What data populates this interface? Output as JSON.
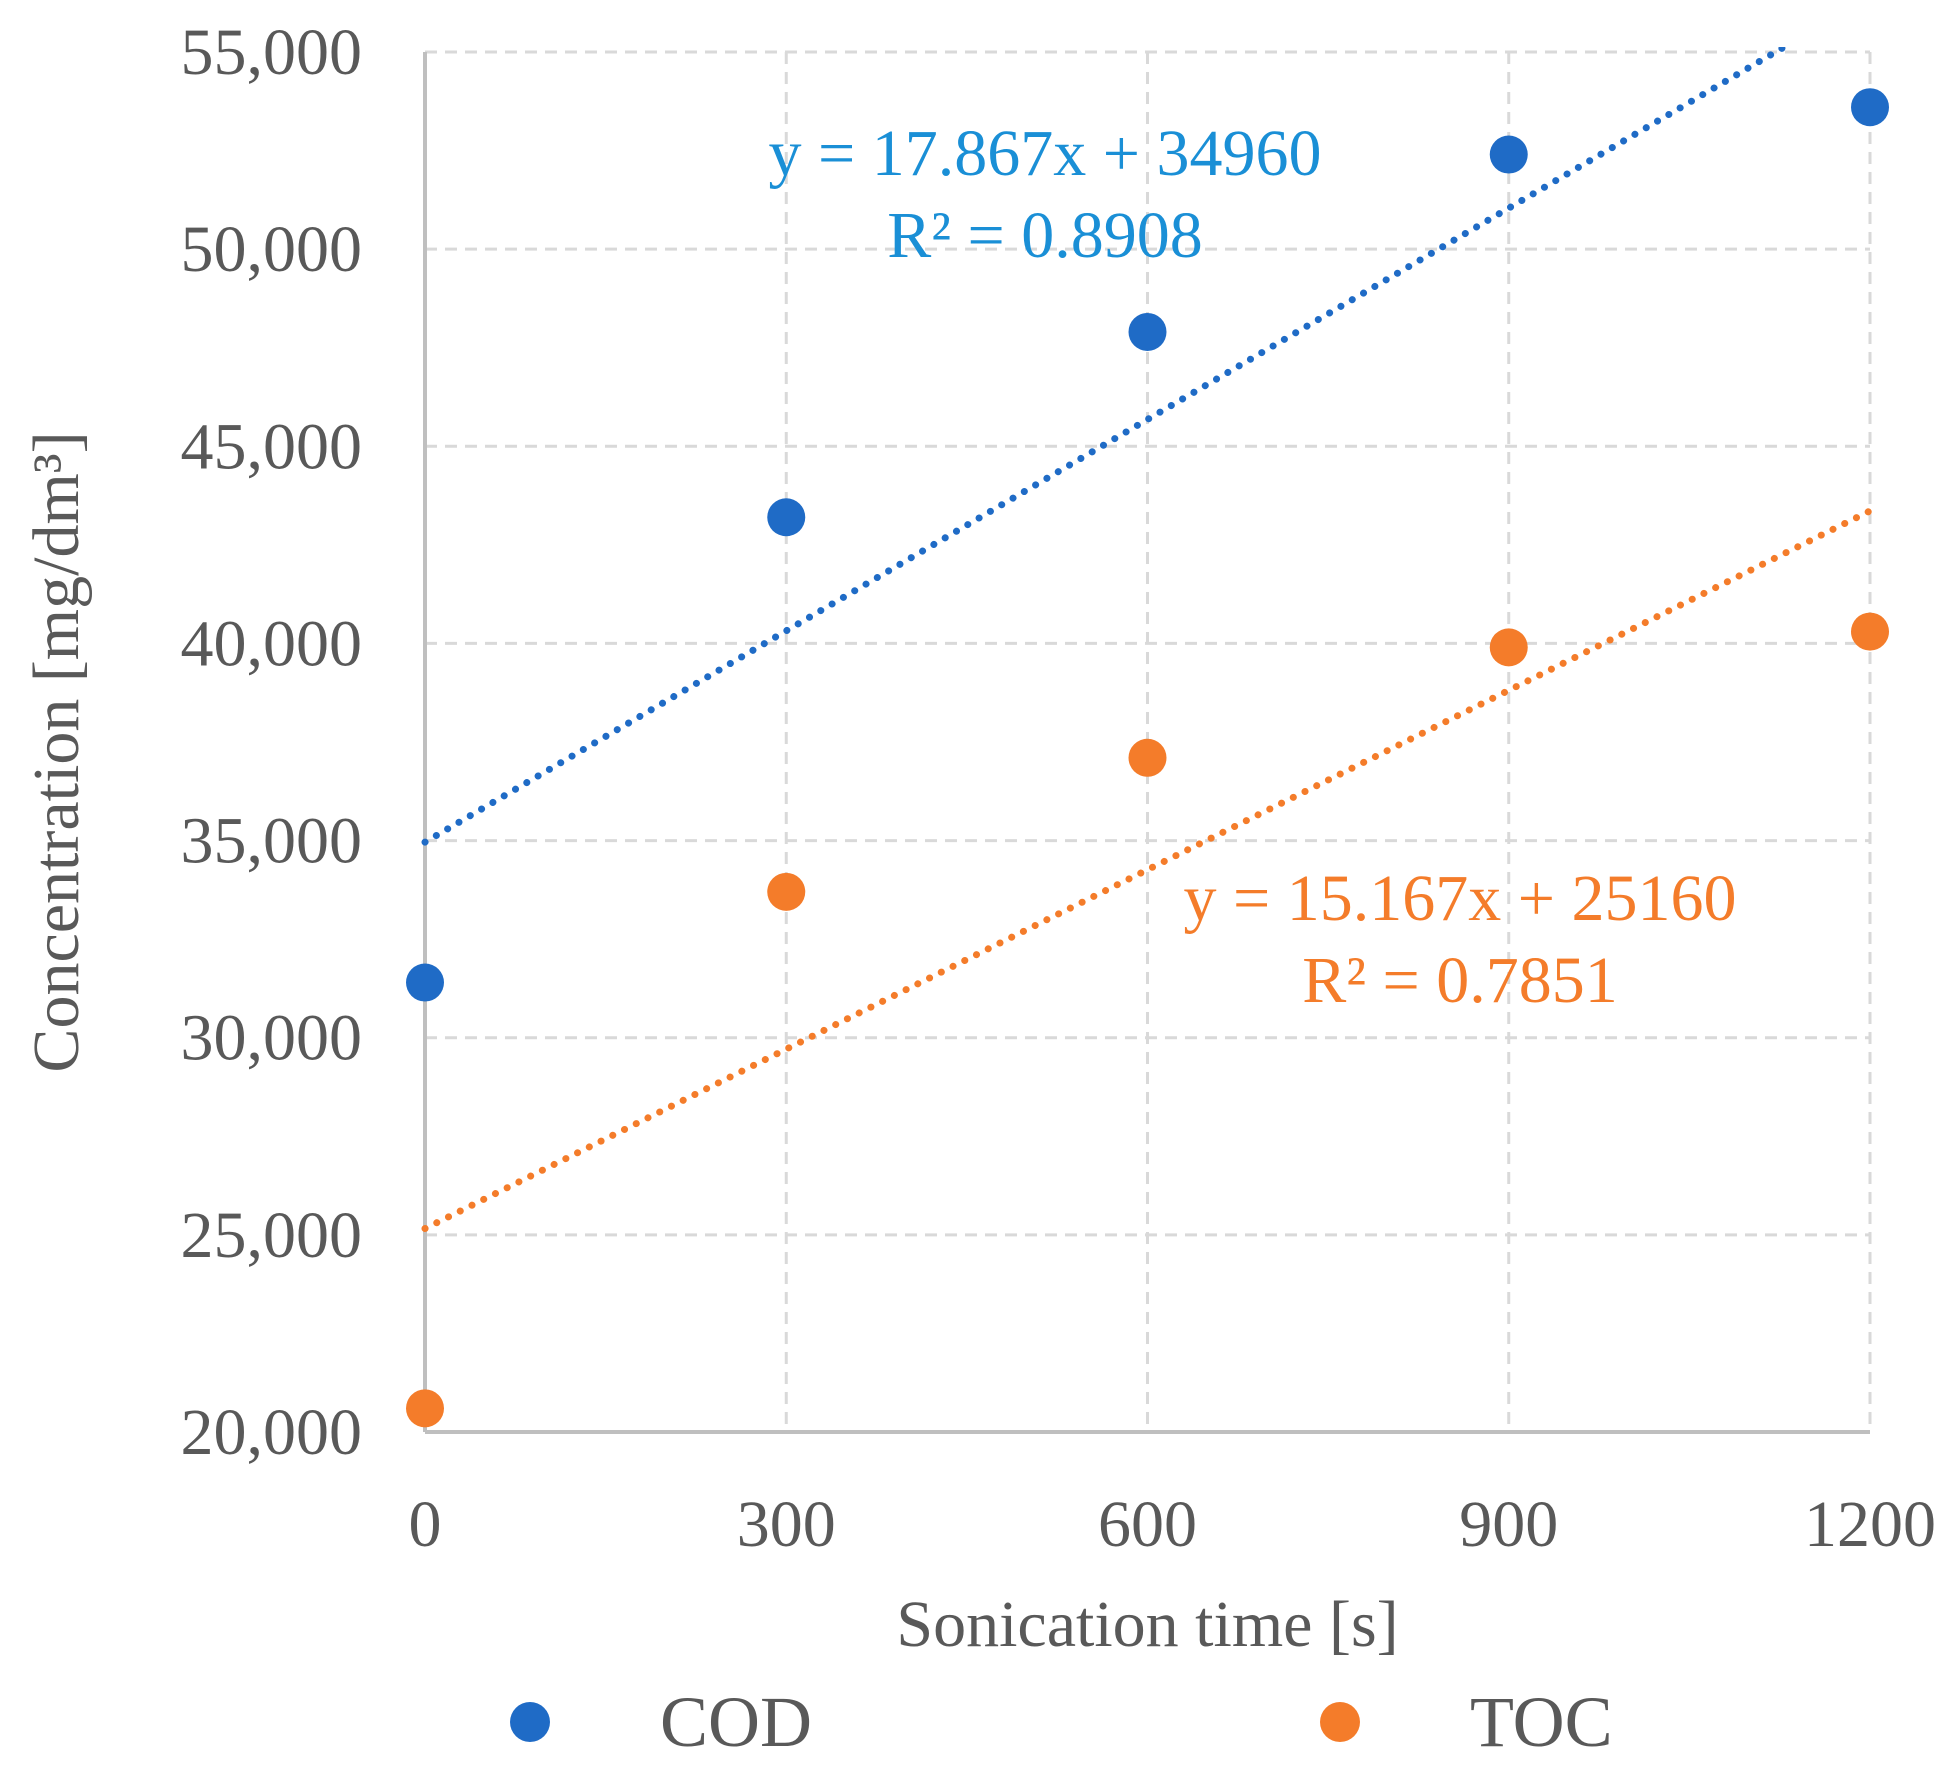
{
  "chart_data": {
    "type": "scatter",
    "title": "",
    "xlabel": "Sonication time [s]",
    "ylabel": "Concentration [mg/dm³]",
    "xlim": [
      0,
      1200
    ],
    "ylim": [
      20000,
      55000
    ],
    "x_ticks": [
      0,
      300,
      600,
      900,
      1200
    ],
    "x_tick_labels": [
      "0",
      "300",
      "600",
      "900",
      "1200"
    ],
    "y_ticks": [
      20000,
      25000,
      30000,
      35000,
      40000,
      45000,
      50000,
      55000
    ],
    "y_tick_labels": [
      "20,000",
      "25,000",
      "30,000",
      "35,000",
      "40,000",
      "45,000",
      "50,000",
      "55,000"
    ],
    "grid": true,
    "legend_position": "bottom",
    "series": [
      {
        "name": "COD",
        "color": "#1f6bc6",
        "x": [
          0,
          300,
          600,
          900,
          1200
        ],
        "values": [
          31400,
          43200,
          47900,
          52400,
          53600
        ],
        "trendline": {
          "type": "linear",
          "slope": 17.867,
          "intercept": 34960,
          "equation": "y = 17.867x + 34960",
          "r2": "R² = 0.8908",
          "label_color": "#1a8fd6"
        }
      },
      {
        "name": "TOC",
        "color": "#f47c2a",
        "x": [
          0,
          300,
          600,
          900,
          1200
        ],
        "values": [
          20600,
          33700,
          37100,
          39900,
          40300
        ],
        "trendline": {
          "type": "linear",
          "slope": 15.167,
          "intercept": 25160,
          "equation": "y = 15.167x + 25160",
          "r2": "R² = 0.7851",
          "label_color": "#f47c2a"
        }
      }
    ]
  }
}
